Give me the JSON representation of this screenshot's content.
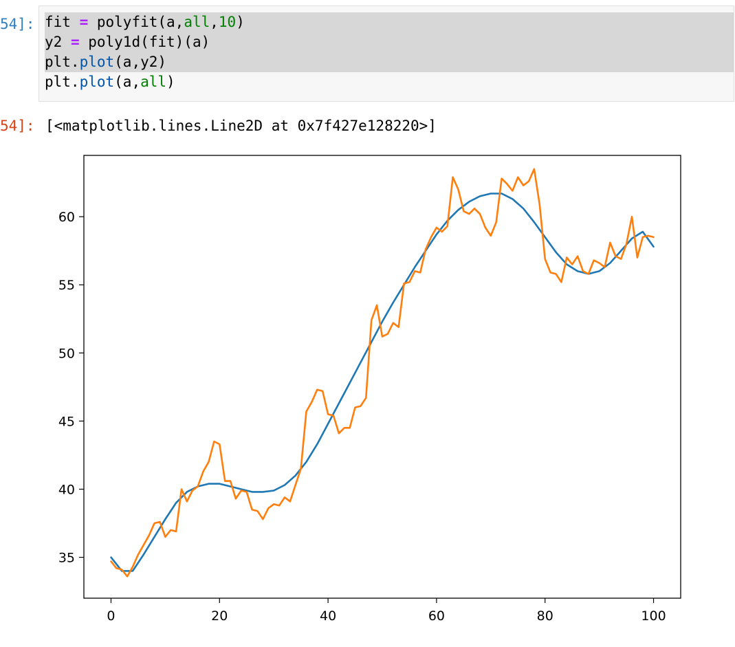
{
  "cell": {
    "in_prompt": "54]:",
    "out_prompt": "54]:",
    "code_lines": [
      [
        {
          "t": "fit ",
          "c": ""
        },
        {
          "t": "=",
          "c": "op"
        },
        {
          "t": " polyfit(a,",
          "c": ""
        },
        {
          "t": "all",
          "c": "kw"
        },
        {
          "t": ",",
          "c": ""
        },
        {
          "t": "10",
          "c": "num"
        },
        {
          "t": ")",
          "c": ""
        }
      ],
      [
        {
          "t": "y2 ",
          "c": ""
        },
        {
          "t": "=",
          "c": "op"
        },
        {
          "t": " poly1d(fit)(a)",
          "c": ""
        }
      ],
      [
        {
          "t": "plt.",
          "c": ""
        },
        {
          "t": "plot",
          "c": "attr"
        },
        {
          "t": "(a,y2)",
          "c": ""
        }
      ],
      [
        {
          "t": "plt.",
          "c": ""
        },
        {
          "t": "plot",
          "c": "attr"
        },
        {
          "t": "(a,",
          "c": ""
        },
        {
          "t": "all",
          "c": "kw"
        },
        {
          "t": ")",
          "c": ""
        }
      ]
    ],
    "output_text": "[<matplotlib.lines.Line2D at 0x7f427e128220>]"
  },
  "colors": {
    "fit_line": "#1f77b4",
    "data_line": "#ff7f0e",
    "in_prompt": "#307fc1",
    "out_prompt": "#d84315"
  },
  "chart_data": {
    "type": "line",
    "title": "",
    "xlabel": "",
    "ylabel": "",
    "xlim": [
      -5,
      105
    ],
    "ylim": [
      32,
      64.5
    ],
    "xticks": [
      0,
      20,
      40,
      60,
      80,
      100
    ],
    "yticks": [
      35,
      40,
      45,
      50,
      55,
      60
    ],
    "grid": false,
    "series": [
      {
        "x": [
          0,
          2,
          4,
          6,
          8,
          10,
          12,
          14,
          16,
          18,
          20,
          22,
          24,
          26,
          28,
          30,
          32,
          34,
          36,
          38,
          40,
          42,
          44,
          46,
          48,
          50,
          52,
          54,
          56,
          58,
          60,
          62,
          64,
          66,
          68,
          70,
          72,
          74,
          76,
          78,
          80,
          82,
          84,
          86,
          88,
          90,
          92,
          94,
          96,
          98,
          100
        ],
        "values": [
          35.0,
          34.0,
          34.0,
          35.2,
          36.5,
          37.8,
          39.0,
          39.8,
          40.2,
          40.4,
          40.4,
          40.2,
          40.0,
          39.8,
          39.8,
          39.9,
          40.3,
          41.0,
          42.0,
          43.3,
          44.8,
          46.3,
          47.8,
          49.3,
          50.8,
          52.3,
          53.7,
          55.0,
          56.3,
          57.5,
          58.7,
          59.7,
          60.5,
          61.1,
          61.5,
          61.7,
          61.7,
          61.3,
          60.6,
          59.6,
          58.5,
          57.4,
          56.5,
          56.0,
          55.8,
          56.0,
          56.6,
          57.5,
          58.4,
          58.9,
          57.8
        ]
      },
      {
        "x": [
          0,
          1,
          2,
          3,
          4,
          5,
          6,
          7,
          8,
          9,
          10,
          11,
          12,
          13,
          14,
          15,
          16,
          17,
          18,
          19,
          20,
          21,
          22,
          23,
          24,
          25,
          26,
          27,
          28,
          29,
          30,
          31,
          32,
          33,
          34,
          35,
          36,
          37,
          38,
          39,
          40,
          41,
          42,
          43,
          44,
          45,
          46,
          47,
          48,
          49,
          50,
          51,
          52,
          53,
          54,
          55,
          56,
          57,
          58,
          59,
          60,
          61,
          62,
          63,
          64,
          65,
          66,
          67,
          68,
          69,
          70,
          71,
          72,
          73,
          74,
          75,
          76,
          77,
          78,
          79,
          80,
          81,
          82,
          83,
          84,
          85,
          86,
          87,
          88,
          89,
          90,
          91,
          92,
          93,
          94,
          95,
          96,
          97,
          98,
          99,
          100
        ],
        "values": [
          34.7,
          34.2,
          34.1,
          33.6,
          34.3,
          35.2,
          35.9,
          36.6,
          37.5,
          37.6,
          36.5,
          37.0,
          36.9,
          40.0,
          39.1,
          39.9,
          40.2,
          41.3,
          42.0,
          43.5,
          43.3,
          40.6,
          40.6,
          39.3,
          39.9,
          39.8,
          38.5,
          38.4,
          37.8,
          38.6,
          38.9,
          38.8,
          39.4,
          39.1,
          40.3,
          41.5,
          45.7,
          46.4,
          47.3,
          47.2,
          45.5,
          45.4,
          44.1,
          44.5,
          44.5,
          46.0,
          46.1,
          46.7,
          52.4,
          53.5,
          51.2,
          51.4,
          52.2,
          51.9,
          55.1,
          55.2,
          56.0,
          55.9,
          57.6,
          58.5,
          59.2,
          58.9,
          59.3,
          62.9,
          62.0,
          60.4,
          60.2,
          60.6,
          60.2,
          59.2,
          58.6,
          59.6,
          62.8,
          62.4,
          61.9,
          62.9,
          62.3,
          62.6,
          63.5,
          60.9,
          56.9,
          55.9,
          55.8,
          55.2,
          57.0,
          56.5,
          57.1,
          56.0,
          55.8,
          56.8,
          56.6,
          56.3,
          58.1,
          57.1,
          56.9,
          58.0,
          60.0,
          57.0,
          58.5,
          58.6,
          58.5
        ]
      }
    ]
  }
}
